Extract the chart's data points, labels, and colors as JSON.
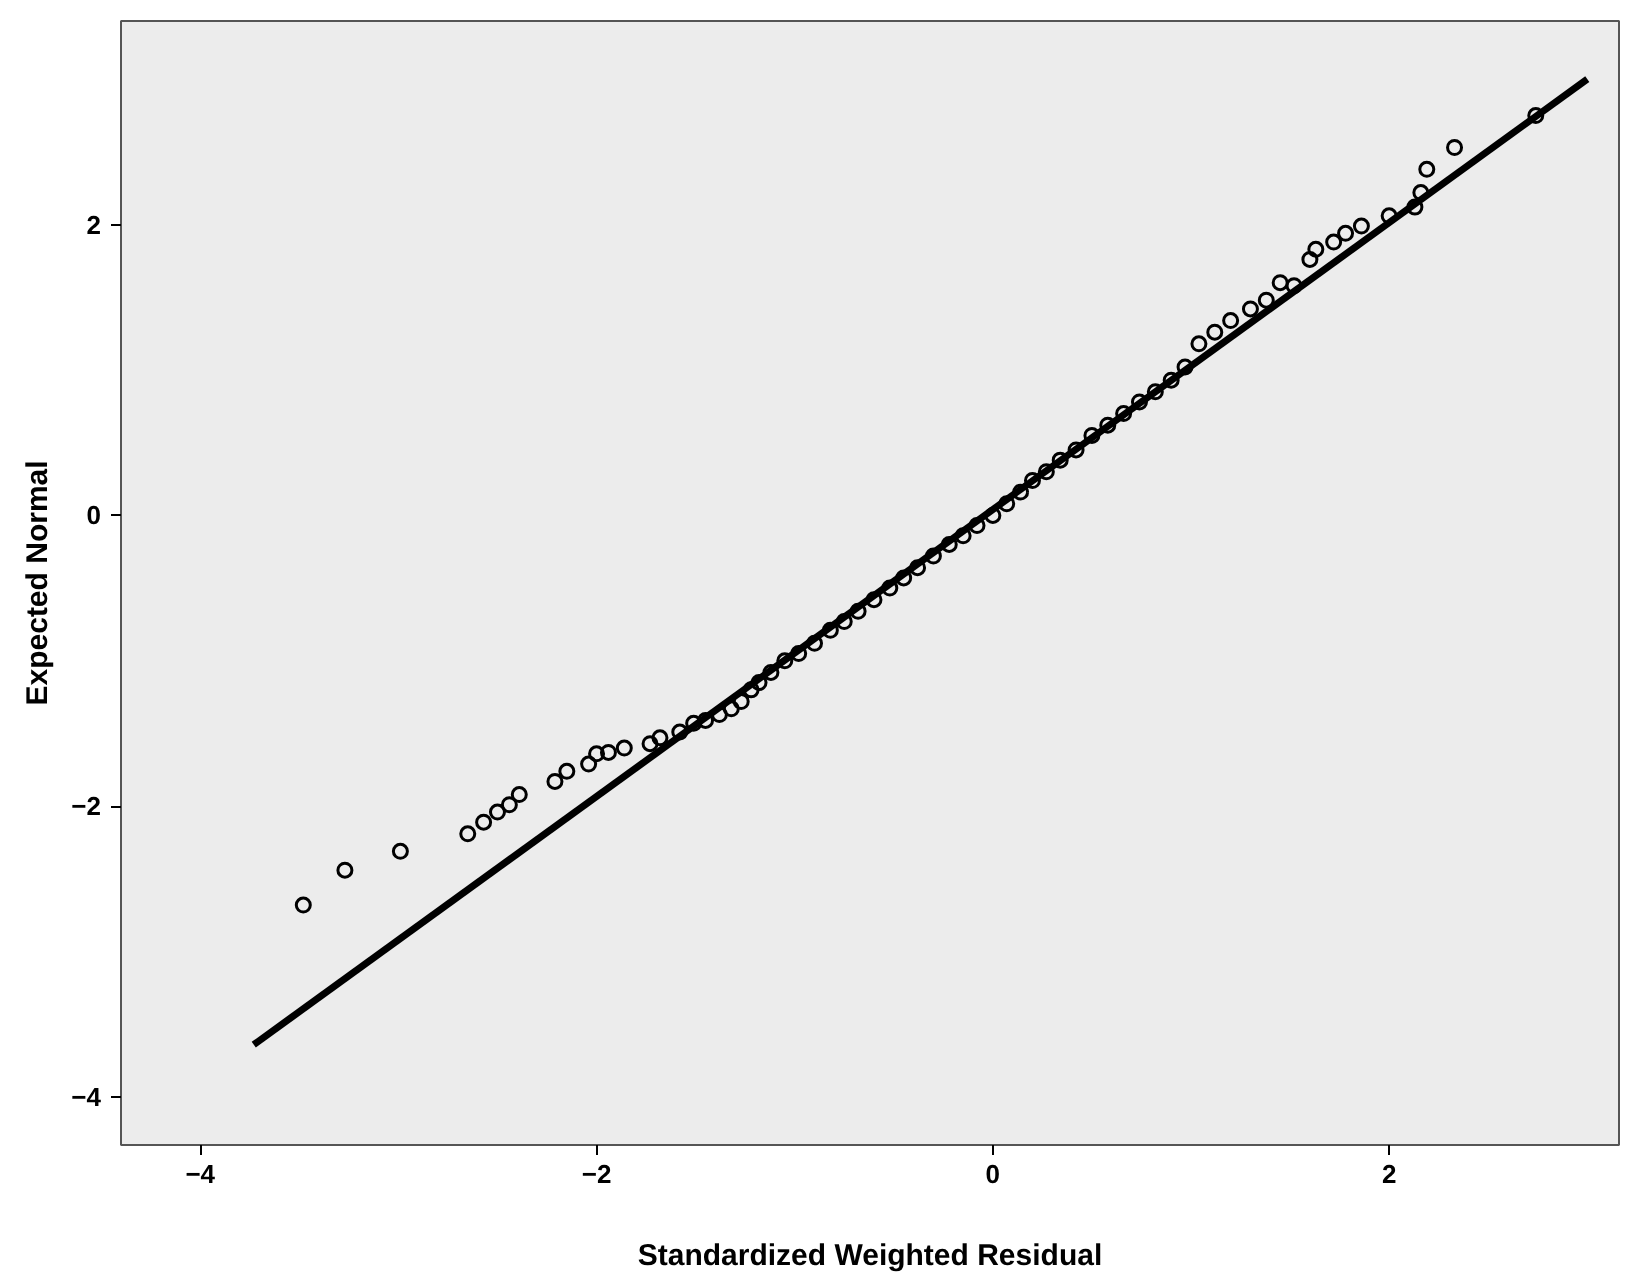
{
  "chart_data": {
    "type": "scatter",
    "xlabel": "Standardized Weighted Residual",
    "ylabel": "Expected Normal",
    "xlim": [
      -4.4,
      3.16
    ],
    "ylim": [
      -4.33,
      3.4
    ],
    "xticks": [
      -4,
      -2,
      0,
      2
    ],
    "yticks": [
      -4,
      -2,
      0,
      2
    ],
    "grid": false,
    "series": [
      {
        "marker": "circle",
        "color": "#000000",
        "x": [
          -3.48,
          -3.27,
          -2.99,
          -2.65,
          -2.57,
          -2.5,
          -2.44,
          -2.39,
          -2.21,
          -2.15,
          -2.04,
          -2.0,
          -1.94,
          -1.86,
          -1.73,
          -1.68,
          -1.58,
          -1.51,
          -1.45,
          -1.38,
          -1.32,
          -1.27,
          -1.22,
          -1.18,
          -1.12,
          -1.05,
          -0.98,
          -0.9,
          -0.82,
          -0.75,
          -0.68,
          -0.6,
          -0.52,
          -0.45,
          -0.38,
          -0.3,
          -0.22,
          -0.15,
          -0.08,
          0.0,
          0.07,
          0.14,
          0.2,
          0.27,
          0.34,
          0.42,
          0.5,
          0.58,
          0.66,
          0.74,
          0.82,
          0.9,
          0.97,
          1.04,
          1.12,
          1.2,
          1.3,
          1.38,
          1.45,
          1.52,
          1.6,
          1.63,
          1.72,
          1.78,
          1.86,
          2.0,
          2.13,
          2.16,
          2.19,
          2.33,
          2.74
        ],
        "values": [
          -2.68,
          -2.44,
          -2.31,
          -2.19,
          -2.11,
          -2.04,
          -1.99,
          -1.92,
          -1.83,
          -1.76,
          -1.71,
          -1.64,
          -1.63,
          -1.6,
          -1.57,
          -1.53,
          -1.49,
          -1.43,
          -1.41,
          -1.37,
          -1.33,
          -1.28,
          -1.2,
          -1.15,
          -1.08,
          -1.0,
          -0.95,
          -0.88,
          -0.79,
          -0.73,
          -0.66,
          -0.58,
          -0.5,
          -0.43,
          -0.36,
          -0.28,
          -0.2,
          -0.14,
          -0.07,
          0.0,
          0.08,
          0.16,
          0.24,
          0.3,
          0.38,
          0.45,
          0.55,
          0.62,
          0.7,
          0.78,
          0.85,
          0.93,
          1.02,
          1.18,
          1.26,
          1.34,
          1.42,
          1.48,
          1.6,
          1.58,
          1.76,
          1.83,
          1.88,
          1.94,
          1.99,
          2.06,
          2.12,
          2.22,
          2.38,
          2.53,
          2.75
        ]
      },
      {
        "type": "line",
        "marker": "none",
        "color": "#000000",
        "x": [
          -3.73,
          3.0
        ],
        "values": [
          -3.64,
          3.0
        ]
      }
    ]
  }
}
